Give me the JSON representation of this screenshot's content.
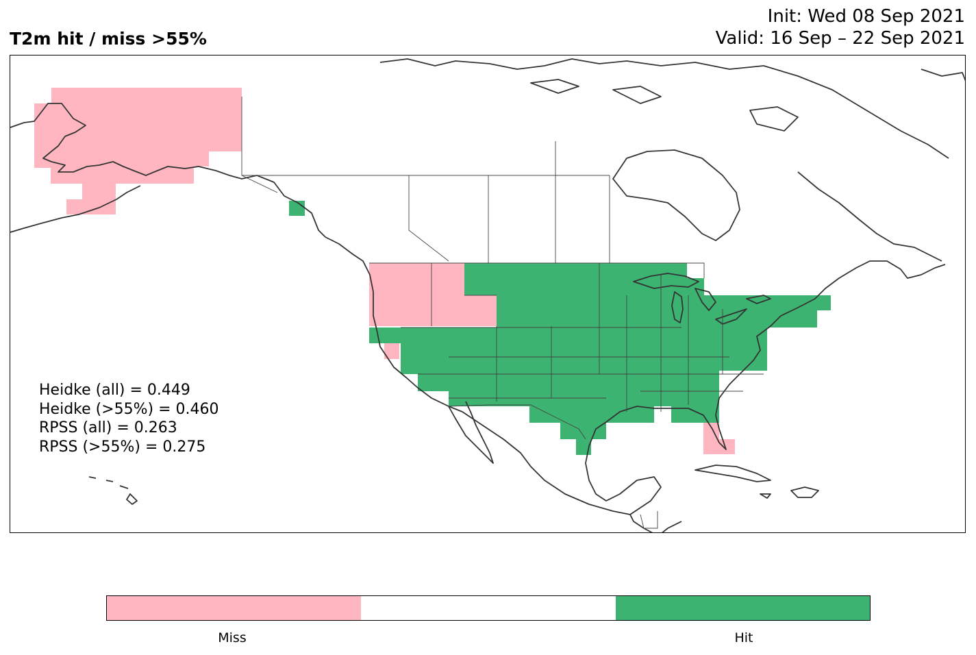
{
  "title": "T2m hit / miss  >55%",
  "init_line": "Init: Wed 08 Sep 2021",
  "valid_line": "Valid: 16 Sep – 22 Sep 2021",
  "scores": {
    "heidke_all": "Heidke (all) = 0.449",
    "heidke_55": "Heidke (>55%) = 0.460",
    "rpss_all": "RPSS (all) = 0.263",
    "rpss_55": "RPSS (>55%) = 0.275"
  },
  "colorbar": {
    "segments": [
      {
        "label": "Miss",
        "color": "#ffb6c1"
      },
      {
        "label": "",
        "color": "#ffffff"
      },
      {
        "label": "Hit",
        "color": "#3cb371"
      }
    ]
  },
  "colors": {
    "miss": "#ffb6c1",
    "hit": "#3cb371",
    "coast": "#333333"
  }
}
